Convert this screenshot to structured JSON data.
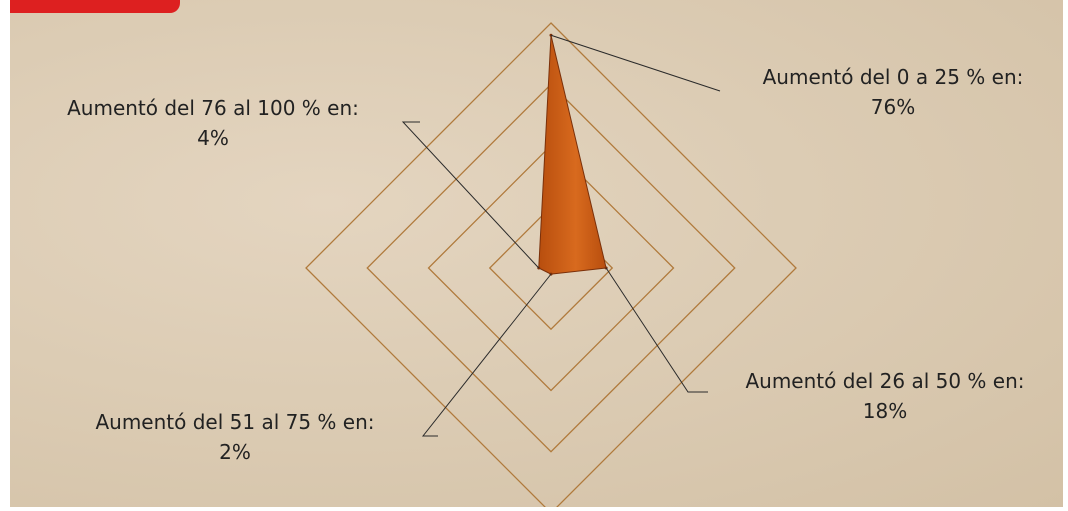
{
  "chart_data": {
    "type": "radar",
    "categories": [
      "Aumentó del 0 a 25 % en:",
      "Aumentó del 26 al 50 % en:",
      "Aumentó del 51 al 75 % en:",
      "Aumentó del 76 al 100 % en:"
    ],
    "values": [
      76,
      18,
      2,
      4
    ],
    "value_labels": [
      "76%",
      "18%",
      "2%",
      "4%"
    ],
    "rlim": [
      0,
      80
    ],
    "rings": 4,
    "grid": true,
    "legend": "none",
    "colors": {
      "fill": "#b84e0e",
      "fill_light": "#d86a1e",
      "grid": "#b07a3c",
      "leader": "#2a2a2a",
      "background": "#dccdb7",
      "corner_tab": "#dd2020"
    }
  }
}
